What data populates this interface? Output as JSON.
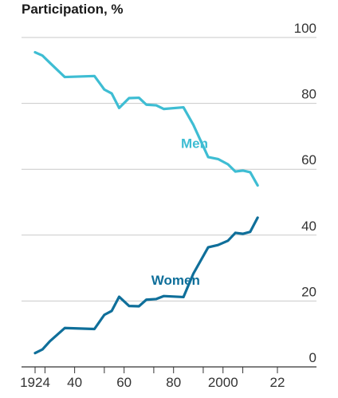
{
  "chart_data": {
    "type": "line",
    "title": "",
    "ylabel": "Participation, %",
    "xlabel": "",
    "ylim": [
      0,
      100
    ],
    "xlim": [
      1924,
      2024
    ],
    "yticks": [
      0,
      20,
      40,
      60,
      80,
      100
    ],
    "xticks": [
      1924,
      1928,
      1940,
      1952,
      1960,
      1972,
      1980,
      1992,
      2000,
      2008,
      2022
    ],
    "xtick_labels": [
      {
        "x": 1924,
        "label": "1924"
      },
      {
        "x": 1940,
        "label": "40"
      },
      {
        "x": 1960,
        "label": "60"
      },
      {
        "x": 1980,
        "label": "80"
      },
      {
        "x": 2000,
        "label": "2000"
      },
      {
        "x": 2022,
        "label": "22"
      }
    ],
    "grid": true,
    "series": [
      {
        "name": "Men",
        "color": "#3ebdd3",
        "points": [
          [
            1924,
            95.5
          ],
          [
            1927,
            94.5
          ],
          [
            1930,
            92.3
          ],
          [
            1936,
            88
          ],
          [
            1948,
            88.3
          ],
          [
            1952,
            84.2
          ],
          [
            1955,
            83
          ],
          [
            1958,
            78.6
          ],
          [
            1962,
            81.6
          ],
          [
            1966,
            81.7
          ],
          [
            1969,
            79.6
          ],
          [
            1973,
            79.4
          ],
          [
            1976,
            78.3
          ],
          [
            1984,
            78.8
          ],
          [
            1988,
            73.5
          ],
          [
            1994,
            63.7
          ],
          [
            1998,
            63.1
          ],
          [
            2002,
            61.5
          ],
          [
            2005,
            59.3
          ],
          [
            2008,
            59.6
          ],
          [
            2011,
            59.1
          ],
          [
            2014,
            55.1
          ]
        ],
        "label_x": 1983,
        "label_y": 66.5
      },
      {
        "name": "Women",
        "color": "#0f6f9a",
        "points": [
          [
            1924,
            4.2
          ],
          [
            1927,
            5.3
          ],
          [
            1930,
            7.8
          ],
          [
            1936,
            11.8
          ],
          [
            1948,
            11.5
          ],
          [
            1952,
            15.8
          ],
          [
            1955,
            17
          ],
          [
            1958,
            21.3
          ],
          [
            1962,
            18.5
          ],
          [
            1966,
            18.4
          ],
          [
            1969,
            20.4
          ],
          [
            1973,
            20.6
          ],
          [
            1976,
            21.5
          ],
          [
            1984,
            21.2
          ],
          [
            1988,
            28.3
          ],
          [
            1994,
            36.3
          ],
          [
            1998,
            37
          ],
          [
            2002,
            38.3
          ],
          [
            2005,
            40.7
          ],
          [
            2008,
            40.4
          ],
          [
            2011,
            41
          ],
          [
            2014,
            45.3
          ]
        ],
        "label_x": 1971,
        "label_y": 25
      }
    ]
  }
}
